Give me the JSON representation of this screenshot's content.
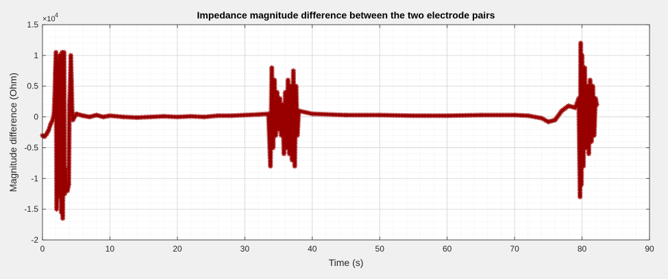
{
  "chart_data": {
    "type": "scatter",
    "title": "Impedance magnitude difference between the two electrode pairs",
    "xlabel": "Time (s)",
    "ylabel": "Magnitude difference (Ohm)",
    "xlim": [
      0,
      90
    ],
    "ylim": [
      -2,
      1.5
    ],
    "y_multiplier_label": "×10",
    "y_multiplier_exponent": "4",
    "x_ticks": [
      0,
      10,
      20,
      30,
      40,
      50,
      60,
      70,
      80,
      90
    ],
    "x_tick_labels": [
      "0",
      "10",
      "20",
      "30",
      "40",
      "50",
      "60",
      "70",
      "80",
      "90"
    ],
    "y_ticks": [
      -2,
      -1.5,
      -1,
      -0.5,
      0,
      0.5,
      1,
      1.5
    ],
    "y_tick_labels": [
      "-2",
      "-1.5",
      "-1",
      "-0.5",
      "0",
      "0.5",
      "1",
      "1.5"
    ],
    "grid": true,
    "minor_grid": true,
    "marker": "asterisk",
    "marker_color": "#990000",
    "series": [
      {
        "name": "",
        "points": [
          [
            0.0,
            -0.3
          ],
          [
            0.3,
            -0.32
          ],
          [
            0.6,
            -0.28
          ],
          [
            0.9,
            -0.22
          ],
          [
            1.2,
            -0.12
          ],
          [
            1.5,
            -0.05
          ],
          [
            1.7,
            0.05
          ],
          [
            1.8,
            0.3
          ],
          [
            1.9,
            0.7
          ],
          [
            2.0,
            1.05
          ],
          [
            2.1,
            -1.5
          ],
          [
            2.2,
            -1.2
          ],
          [
            2.3,
            0.9
          ],
          [
            2.4,
            -0.6
          ],
          [
            2.5,
            1.0
          ],
          [
            2.6,
            -1.3
          ],
          [
            2.7,
            0.8
          ],
          [
            2.8,
            -1.55
          ],
          [
            2.9,
            1.05
          ],
          [
            3.0,
            -1.65
          ],
          [
            3.1,
            -0.4
          ],
          [
            3.2,
            1.05
          ],
          [
            3.3,
            -1.25
          ],
          [
            3.4,
            -0.85
          ],
          [
            3.5,
            -1.2
          ],
          [
            3.6,
            -1.15
          ],
          [
            3.7,
            -1.2
          ],
          [
            3.8,
            -1.15
          ],
          [
            3.9,
            -1.1
          ],
          [
            4.0,
            0.2
          ],
          [
            4.1,
            0.5
          ],
          [
            4.2,
            1.0
          ],
          [
            4.3,
            0.6
          ],
          [
            4.4,
            0.1
          ],
          [
            4.5,
            -0.05
          ],
          [
            5.0,
            0.05
          ],
          [
            6.0,
            0.02
          ],
          [
            7.0,
            0.0
          ],
          [
            8.0,
            0.03
          ],
          [
            9.0,
            0.0
          ],
          [
            10.0,
            0.02
          ],
          [
            12.0,
            0.0
          ],
          [
            14.0,
            -0.01
          ],
          [
            16.0,
            0.0
          ],
          [
            18.0,
            0.01
          ],
          [
            20.0,
            0.0
          ],
          [
            22.0,
            0.01
          ],
          [
            24.0,
            0.0
          ],
          [
            26.0,
            0.02
          ],
          [
            28.0,
            0.02
          ],
          [
            30.0,
            0.03
          ],
          [
            32.0,
            0.04
          ],
          [
            33.5,
            0.05
          ],
          [
            33.8,
            -0.8
          ],
          [
            34.0,
            0.8
          ],
          [
            34.2,
            -0.5
          ],
          [
            34.4,
            0.6
          ],
          [
            34.6,
            -0.3
          ],
          [
            34.8,
            0.4
          ],
          [
            35.0,
            -0.2
          ],
          [
            35.2,
            0.3
          ],
          [
            35.4,
            -0.3
          ],
          [
            35.6,
            0.2
          ],
          [
            35.8,
            -0.6
          ],
          [
            36.0,
            0.4
          ],
          [
            36.2,
            -0.5
          ],
          [
            36.4,
            0.6
          ],
          [
            36.6,
            -0.6
          ],
          [
            36.8,
            0.5
          ],
          [
            37.0,
            -0.7
          ],
          [
            37.2,
            0.75
          ],
          [
            37.4,
            -0.8
          ],
          [
            37.6,
            0.5
          ],
          [
            37.8,
            -0.3
          ],
          [
            38.0,
            0.1
          ],
          [
            40.0,
            0.05
          ],
          [
            45.0,
            0.03
          ],
          [
            50.0,
            0.03
          ],
          [
            55.0,
            0.02
          ],
          [
            60.0,
            0.02
          ],
          [
            65.0,
            0.03
          ],
          [
            70.0,
            0.03
          ],
          [
            72.0,
            0.02
          ],
          [
            74.0,
            -0.02
          ],
          [
            75.0,
            -0.08
          ],
          [
            76.0,
            -0.05
          ],
          [
            77.0,
            0.1
          ],
          [
            78.0,
            0.18
          ],
          [
            79.0,
            0.15
          ],
          [
            79.5,
            0.3
          ],
          [
            79.7,
            -1.3
          ],
          [
            79.8,
            1.2
          ],
          [
            79.9,
            -1.1
          ],
          [
            80.0,
            1.0
          ],
          [
            80.2,
            -0.8
          ],
          [
            80.4,
            0.8
          ],
          [
            80.6,
            -0.5
          ],
          [
            80.8,
            0.5
          ],
          [
            81.0,
            -0.6
          ],
          [
            81.2,
            0.6
          ],
          [
            81.4,
            -0.4
          ],
          [
            81.6,
            0.5
          ],
          [
            81.8,
            -0.3
          ],
          [
            82.0,
            0.3
          ],
          [
            82.2,
            0.2
          ]
        ]
      }
    ]
  }
}
